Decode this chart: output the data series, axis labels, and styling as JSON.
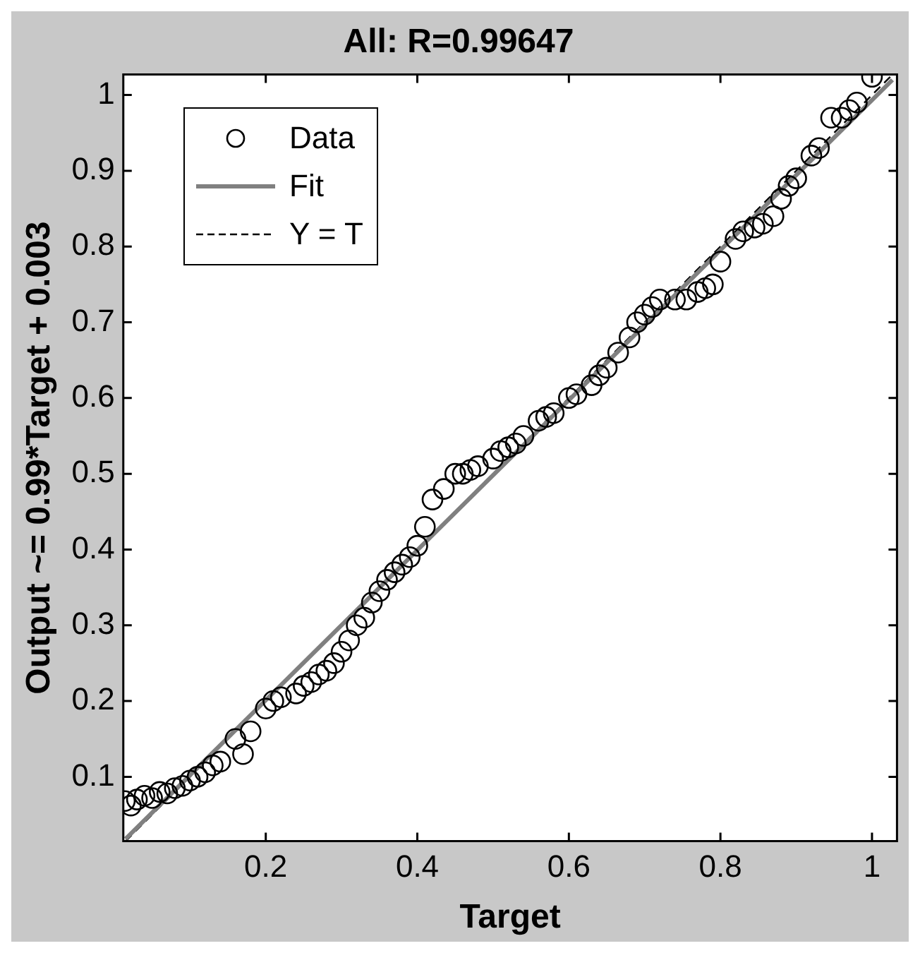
{
  "chart_data": {
    "type": "scatter",
    "title": "All: R=0.99647",
    "xlabel": "Target",
    "ylabel": "Output ~= 0.99*Target + 0.003",
    "xlim": [
      0.012,
      1.033
    ],
    "ylim": [
      0.015,
      1.027
    ],
    "xticks": [
      0.2,
      0.4,
      0.6,
      0.8,
      1
    ],
    "yticks": [
      0.1,
      0.2,
      0.3,
      0.4,
      0.5,
      0.6,
      0.7,
      0.8,
      0.9,
      1
    ],
    "legend": "top left",
    "series": [
      {
        "name": "Data",
        "type": "scatter",
        "color": "#000000",
        "marker": "circle",
        "x": [
          0.014,
          0.022,
          0.03,
          0.04,
          0.05,
          0.06,
          0.07,
          0.08,
          0.09,
          0.1,
          0.11,
          0.12,
          0.13,
          0.14,
          0.16,
          0.17,
          0.18,
          0.2,
          0.21,
          0.22,
          0.24,
          0.25,
          0.26,
          0.27,
          0.28,
          0.29,
          0.3,
          0.31,
          0.32,
          0.33,
          0.34,
          0.35,
          0.36,
          0.37,
          0.38,
          0.39,
          0.4,
          0.41,
          0.42,
          0.435,
          0.45,
          0.46,
          0.47,
          0.48,
          0.5,
          0.51,
          0.52,
          0.53,
          0.54,
          0.56,
          0.57,
          0.58,
          0.6,
          0.61,
          0.63,
          0.64,
          0.65,
          0.665,
          0.68,
          0.69,
          0.7,
          0.71,
          0.72,
          0.74,
          0.755,
          0.77,
          0.78,
          0.79,
          0.8,
          0.82,
          0.83,
          0.845,
          0.856,
          0.87,
          0.88,
          0.89,
          0.9,
          0.92,
          0.93,
          0.946,
          0.96,
          0.97,
          0.98,
          1.0
        ],
        "values": [
          0.068,
          0.062,
          0.07,
          0.075,
          0.072,
          0.08,
          0.078,
          0.085,
          0.088,
          0.095,
          0.1,
          0.106,
          0.115,
          0.12,
          0.15,
          0.13,
          0.16,
          0.19,
          0.2,
          0.205,
          0.21,
          0.22,
          0.225,
          0.235,
          0.24,
          0.25,
          0.265,
          0.28,
          0.3,
          0.31,
          0.33,
          0.345,
          0.36,
          0.37,
          0.38,
          0.39,
          0.405,
          0.43,
          0.466,
          0.48,
          0.5,
          0.5,
          0.505,
          0.51,
          0.52,
          0.53,
          0.535,
          0.54,
          0.55,
          0.57,
          0.575,
          0.58,
          0.6,
          0.605,
          0.617,
          0.63,
          0.64,
          0.66,
          0.68,
          0.7,
          0.71,
          0.72,
          0.73,
          0.73,
          0.73,
          0.74,
          0.745,
          0.75,
          0.78,
          0.81,
          0.82,
          0.825,
          0.83,
          0.84,
          0.863,
          0.88,
          0.89,
          0.92,
          0.93,
          0.97,
          0.97,
          0.98,
          0.99,
          1.024
        ]
      },
      {
        "name": "Fit",
        "type": "line",
        "color": "#808080",
        "line_style": "solid",
        "x": [
          0.015,
          1.027
        ],
        "values": [
          0.018,
          1.02
        ]
      },
      {
        "name": "Y = T",
        "type": "line",
        "color": "#000000",
        "line_style": "dashed",
        "x": [
          0.015,
          1.027
        ],
        "values": [
          0.015,
          1.027
        ]
      }
    ]
  }
}
